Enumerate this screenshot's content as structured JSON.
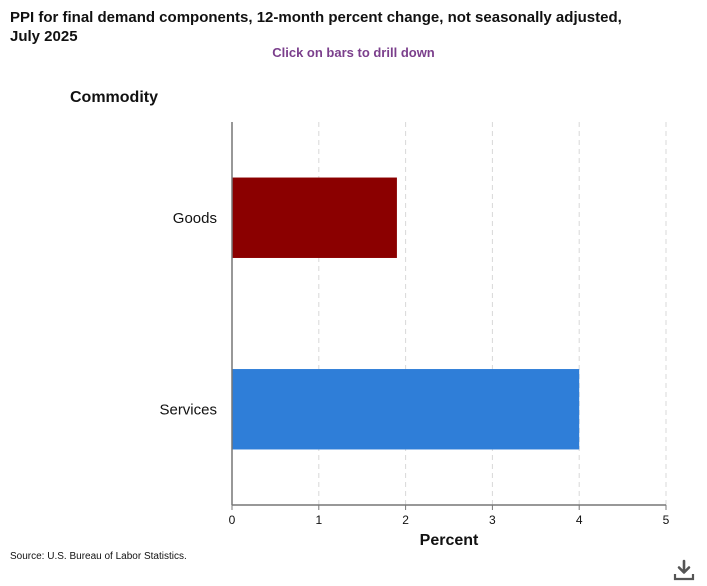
{
  "header": {
    "title": "PPI for final demand components, 12-month percent change, not seasonally adjusted, July 2025",
    "drill_hint": "Click on bars to drill down"
  },
  "footer": {
    "source": "Source: U.S. Bureau of Labor Statistics."
  },
  "icons": {
    "download": "download-icon"
  },
  "chart_data": {
    "type": "bar",
    "orientation": "horizontal",
    "ylabel": "Commodity",
    "xlabel": "Percent",
    "categories": [
      "Goods",
      "Services"
    ],
    "values": [
      1.9,
      4.0
    ],
    "colors": [
      "#8b0000",
      "#2f7ed8"
    ],
    "xlim": [
      0,
      5
    ],
    "xticks": [
      "0",
      "1",
      "2",
      "3",
      "4",
      "5"
    ],
    "grid": true
  }
}
